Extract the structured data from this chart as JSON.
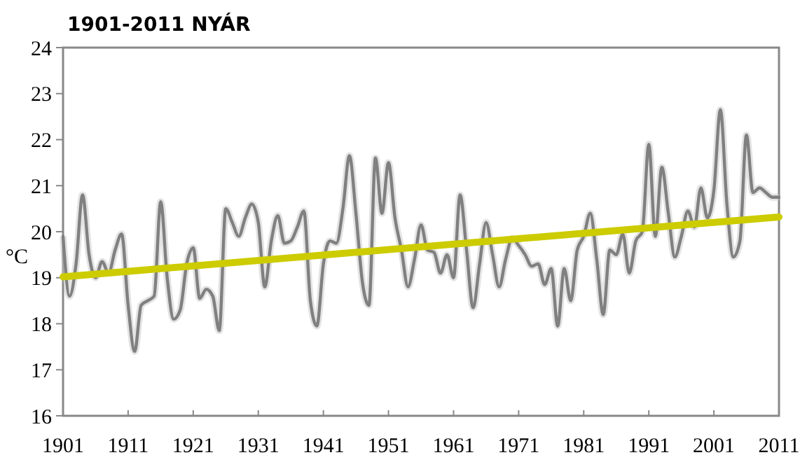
{
  "chart_data": {
    "type": "line",
    "title": "1901-2011 NYÁR",
    "ylabel": "°C",
    "x": [
      1901,
      1902,
      1903,
      1904,
      1905,
      1906,
      1907,
      1908,
      1909,
      1910,
      1911,
      1912,
      1913,
      1914,
      1915,
      1916,
      1917,
      1918,
      1919,
      1920,
      1921,
      1922,
      1923,
      1924,
      1925,
      1926,
      1927,
      1928,
      1929,
      1930,
      1931,
      1932,
      1933,
      1934,
      1935,
      1936,
      1937,
      1938,
      1939,
      1940,
      1941,
      1942,
      1943,
      1944,
      1945,
      1946,
      1947,
      1948,
      1949,
      1950,
      1951,
      1952,
      1953,
      1954,
      1955,
      1956,
      1957,
      1958,
      1959,
      1960,
      1961,
      1962,
      1963,
      1964,
      1965,
      1966,
      1967,
      1968,
      1969,
      1970,
      1971,
      1972,
      1973,
      1974,
      1975,
      1976,
      1977,
      1978,
      1979,
      1980,
      1981,
      1982,
      1983,
      1984,
      1985,
      1986,
      1987,
      1988,
      1989,
      1990,
      1991,
      1992,
      1993,
      1994,
      1995,
      1996,
      1997,
      1998,
      1999,
      2000,
      2001,
      2002,
      2003,
      2004,
      2005,
      2006,
      2007,
      2008,
      2009,
      2010,
      2011
    ],
    "series": [
      {
        "color": "#808080",
        "values": [
          19.9,
          18.6,
          19.3,
          20.8,
          19.5,
          19.0,
          19.35,
          19.1,
          19.6,
          19.95,
          18.4,
          17.4,
          18.4,
          18.5,
          18.6,
          20.65,
          19.0,
          18.1,
          18.3,
          19.3,
          19.65,
          18.55,
          18.75,
          18.6,
          17.85,
          20.5,
          20.2,
          19.9,
          20.3,
          20.6,
          20.2,
          18.8,
          19.8,
          20.35,
          19.75,
          19.8,
          20.1,
          20.45,
          18.5,
          17.95,
          19.3,
          19.8,
          19.75,
          20.5,
          21.65,
          20.4,
          18.9,
          18.4,
          21.6,
          20.4,
          21.5,
          20.3,
          19.6,
          18.8,
          19.4,
          20.15,
          19.6,
          19.55,
          19.1,
          19.5,
          19.0,
          20.8,
          19.6,
          18.35,
          19.3,
          20.2,
          19.5,
          18.8,
          19.4,
          19.85,
          19.7,
          19.5,
          19.25,
          19.3,
          18.85,
          19.2,
          17.95,
          19.2,
          18.5,
          19.6,
          19.9,
          20.4,
          19.4,
          18.2,
          19.6,
          19.5,
          19.95,
          19.1,
          19.8,
          20.0,
          21.9,
          19.9,
          21.4,
          20.4,
          19.45,
          19.9,
          20.45,
          20.1,
          20.95,
          20.3,
          20.9,
          22.65,
          20.6,
          19.45,
          19.8,
          22.1,
          20.85,
          20.95,
          20.85,
          20.75,
          20.75
        ]
      },
      {
        "color": "#cccc00",
        "x": [
          1901,
          2011
        ],
        "values": [
          19.02,
          20.32
        ]
      }
    ],
    "xlim": [
      1901,
      2011
    ],
    "ylim": [
      16,
      24
    ],
    "xticks": [
      1901,
      1911,
      1921,
      1931,
      1941,
      1951,
      1961,
      1971,
      1981,
      1991,
      2001,
      2011
    ],
    "yticks": [
      16,
      17,
      18,
      19,
      20,
      21,
      22,
      23,
      24
    ],
    "grid": false,
    "marker": "none",
    "line_style": "solid"
  }
}
